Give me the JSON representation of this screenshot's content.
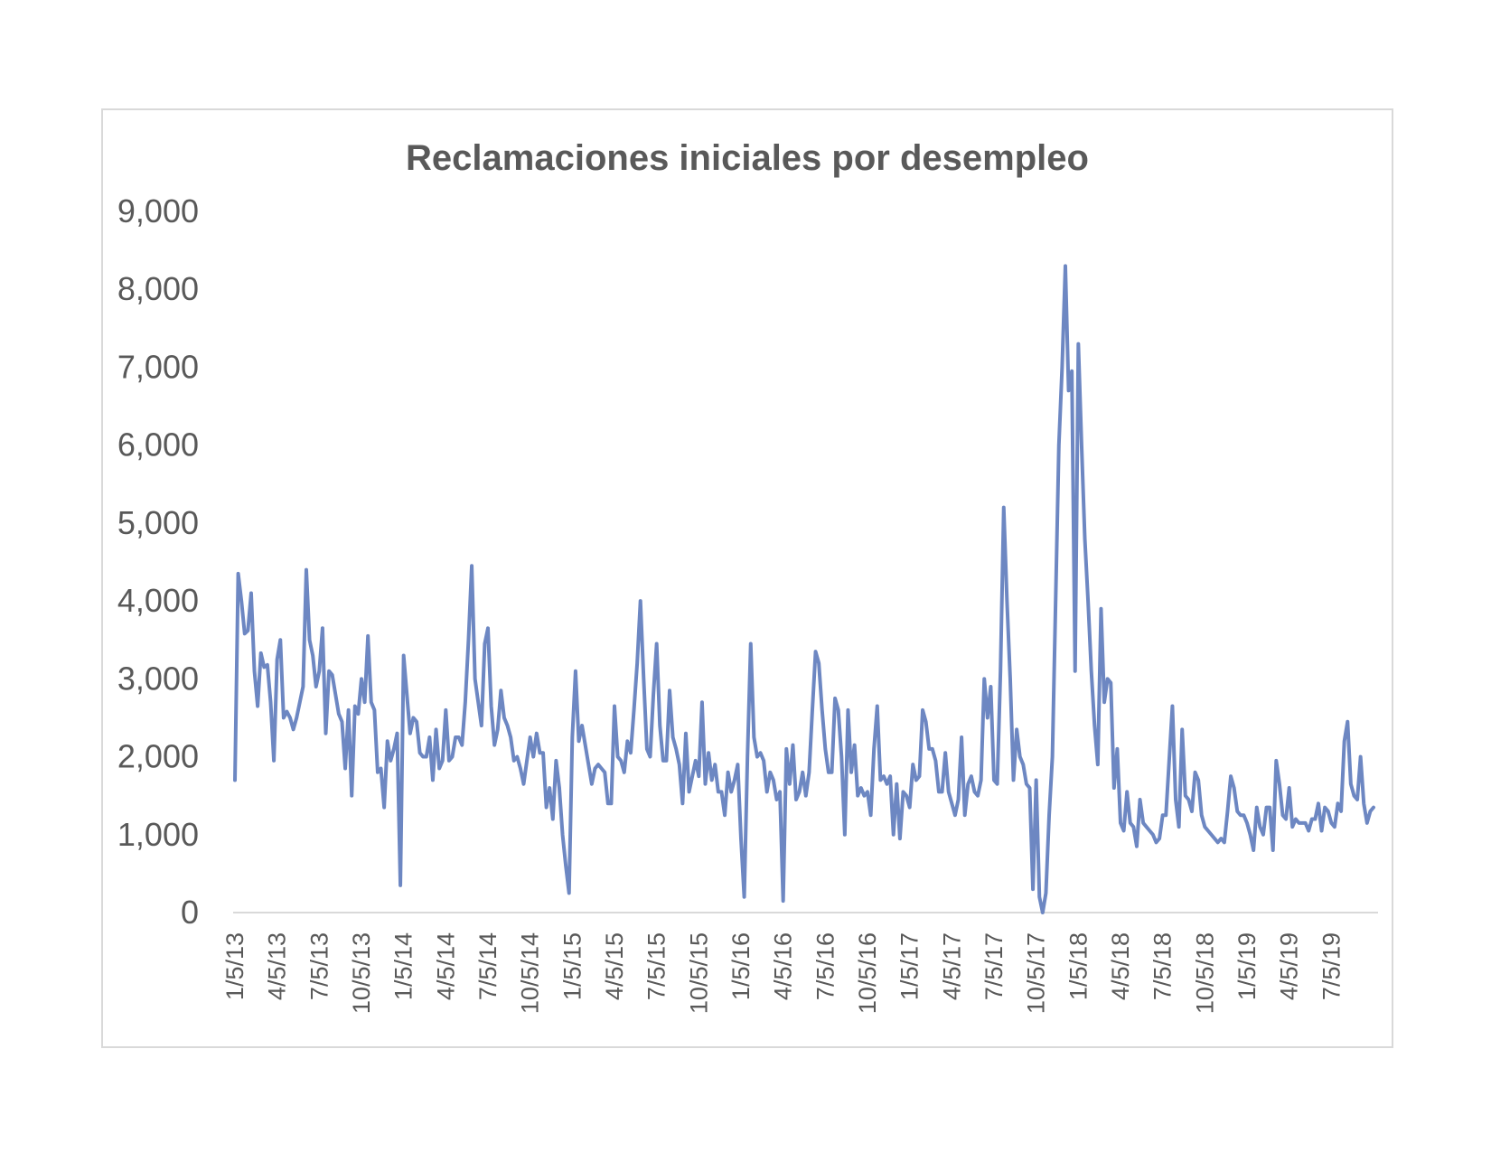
{
  "chart_data": {
    "type": "line",
    "title": "Reclamaciones iniciales por desempleo",
    "xlabel": "",
    "ylabel": "",
    "ylim": [
      0,
      9000
    ],
    "y_ticks": [
      "0",
      "1,000",
      "2,000",
      "3,000",
      "4,000",
      "5,000",
      "6,000",
      "7,000",
      "8,000",
      "9,000"
    ],
    "x_ticks": [
      "1/5/13",
      "4/5/13",
      "7/5/13",
      "10/5/13",
      "1/5/14",
      "4/5/14",
      "7/5/14",
      "10/5/14",
      "1/5/15",
      "4/5/15",
      "7/5/15",
      "10/5/15",
      "1/5/16",
      "4/5/16",
      "7/5/16",
      "10/5/16",
      "1/5/17",
      "4/5/17",
      "7/5/17",
      "10/5/17",
      "1/5/18",
      "4/5/18",
      "7/5/18",
      "10/5/18",
      "1/5/19",
      "4/5/19",
      "7/5/19"
    ],
    "grid": false,
    "legend": "none",
    "line_color": "#6d87c2",
    "x_start": "1/5/13",
    "frequency": "weekly",
    "series": [
      {
        "values": [
          1700,
          4350,
          4000,
          3580,
          3620,
          4100,
          3100,
          2650,
          3330,
          3150,
          3180,
          2700,
          1950,
          3250,
          3500,
          2500,
          2580,
          2500,
          2350,
          2500,
          2700,
          2900,
          4400,
          3500,
          3300,
          2900,
          3100,
          3650,
          2300,
          3100,
          3050,
          2800,
          2550,
          2450,
          1850,
          2600,
          1500,
          2650,
          2550,
          3000,
          2700,
          3550,
          2700,
          2600,
          1800,
          1850,
          1350,
          2200,
          1950,
          2100,
          2300,
          350,
          3300,
          2800,
          2300,
          2500,
          2450,
          2050,
          2000,
          2000,
          2250,
          1700,
          2350,
          1850,
          1950,
          2600,
          1950,
          2000,
          2250,
          2250,
          2150,
          2700,
          3500,
          4450,
          3000,
          2700,
          2400,
          3450,
          3650,
          2650,
          2150,
          2350,
          2850,
          2500,
          2400,
          2250,
          1950,
          2000,
          1850,
          1650,
          1950,
          2250,
          2000,
          2300,
          2050,
          2050,
          1350,
          1600,
          1200,
          1950,
          1600,
          1000,
          600,
          250,
          2250,
          3100,
          2200,
          2400,
          2150,
          1900,
          1650,
          1850,
          1900,
          1850,
          1800,
          1400,
          1400,
          2650,
          2000,
          1950,
          1800,
          2200,
          2050,
          2600,
          3200,
          4000,
          3000,
          2100,
          2000,
          2800,
          3450,
          2400,
          1950,
          1950,
          2850,
          2250,
          2100,
          1900,
          1400,
          2300,
          1550,
          1750,
          1950,
          1750,
          2700,
          1650,
          2050,
          1700,
          1900,
          1550,
          1550,
          1250,
          1800,
          1550,
          1700,
          1900,
          950,
          200,
          2000,
          3450,
          2250,
          2000,
          2050,
          1950,
          1550,
          1800,
          1700,
          1450,
          1550,
          150,
          2100,
          1650,
          2150,
          1450,
          1550,
          1800,
          1500,
          1800,
          2600,
          3350,
          3200,
          2600,
          2100,
          1800,
          1800,
          2750,
          2600,
          2000,
          1000,
          2600,
          1800,
          2150,
          1500,
          1600,
          1500,
          1550,
          1250,
          2100,
          2650,
          1700,
          1750,
          1650,
          1750,
          1000,
          1650,
          950,
          1550,
          1500,
          1350,
          1900,
          1700,
          1750,
          2600,
          2450,
          2100,
          2100,
          1950,
          1550,
          1550,
          2050,
          1550,
          1400,
          1250,
          1450,
          2250,
          1250,
          1650,
          1750,
          1550,
          1500,
          1700,
          3000,
          2500,
          2900,
          1700,
          1650,
          3100,
          5200,
          4000,
          3000,
          1700,
          2350,
          2000,
          1900,
          1650,
          1600,
          300,
          1700,
          200,
          0,
          250,
          1250,
          2000,
          4000,
          6000,
          7000,
          8300,
          6700,
          6950,
          3100,
          7300,
          6000,
          4800,
          4000,
          3100,
          2400,
          1900,
          3900,
          2700,
          3000,
          2950,
          1600,
          2100,
          1150,
          1050,
          1550,
          1150,
          1100,
          850,
          1450,
          1150,
          1100,
          1050,
          1000,
          900,
          950,
          1250,
          1250,
          1950,
          2650,
          1450,
          1100,
          2350,
          1500,
          1450,
          1300,
          1800,
          1700,
          1250,
          1100,
          1050,
          1000,
          950,
          900,
          950,
          900,
          1300,
          1750,
          1600,
          1300,
          1250,
          1250,
          1150,
          1000,
          800,
          1350,
          1100,
          1000,
          1350,
          1350,
          800,
          1950,
          1650,
          1250,
          1200,
          1600,
          1100,
          1200,
          1150,
          1150,
          1150,
          1050,
          1200,
          1200,
          1400,
          1050,
          1350,
          1300,
          1150,
          1100,
          1400,
          1300,
          2200,
          2450,
          1650,
          1500,
          1450,
          2000,
          1400,
          1150,
          1300,
          1350
        ]
      }
    ]
  }
}
